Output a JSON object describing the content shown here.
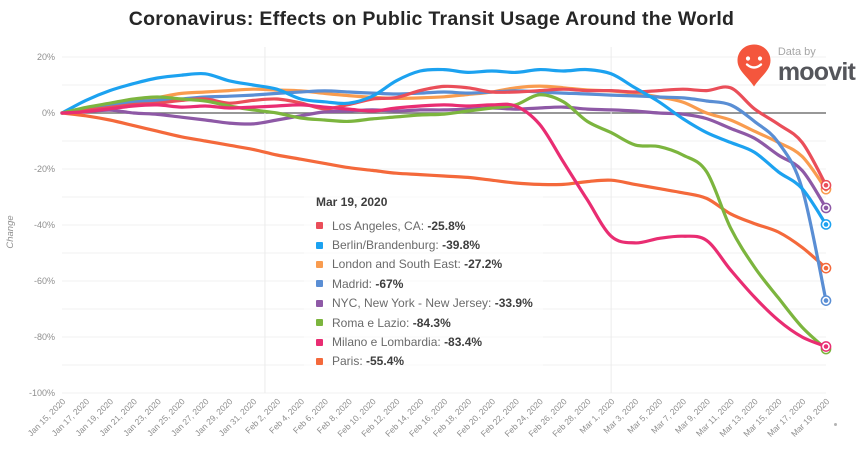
{
  "header": {
    "title": "Coronavirus: Effects on Public Transit Usage Around the World"
  },
  "branding": {
    "data_by": "Data by",
    "brand": "moovit",
    "pin_color": "#f4563d"
  },
  "tooltip": {
    "date": "Mar 19, 2020"
  },
  "chart_data": {
    "type": "line",
    "title": "Coronavirus: Effects on Public Transit Usage Around the World",
    "ylabel": "Change",
    "ylim": [
      -100,
      20
    ],
    "grid_step": 10,
    "grid_on": true,
    "legend_position": "center-overlay-tooltip",
    "y_tick_labels": [
      "20%",
      "0%",
      "-20%",
      "-40%",
      "-60%",
      "-80%",
      "-100%"
    ],
    "y_tick_values": [
      20,
      0,
      -20,
      -40,
      -60,
      -80,
      -100
    ],
    "month_boundaries": [
      "Feb 1, 2020",
      "Mar 1, 2020"
    ],
    "month_boundary_ticks": [
      8.5,
      23
    ],
    "x": [
      "Jan 15, 2020",
      "Jan 17, 2020",
      "Jan 19, 2020",
      "Jan 21, 2020",
      "Jan 23, 2020",
      "Jan 25, 2020",
      "Jan 27, 2020",
      "Jan 29, 2020",
      "Jan 31, 2020",
      "Feb 2, 2020",
      "Feb 4, 2020",
      "Feb 6, 2020",
      "Feb 8, 2020",
      "Feb 10, 2020",
      "Feb 12, 2020",
      "Feb 14, 2020",
      "Feb 16, 2020",
      "Feb 18, 2020",
      "Feb 20, 2020",
      "Feb 22, 2020",
      "Feb 24, 2020",
      "Feb 26, 2020",
      "Feb 28, 2020",
      "Mar 1, 2020",
      "Mar 3, 2020",
      "Mar 5, 2020",
      "Mar 7, 2020",
      "Mar 9, 2020",
      "Mar 11, 2020",
      "Mar 13, 2020",
      "Mar 15, 2020",
      "Mar 17, 2020",
      "Mar 19, 2020"
    ],
    "series": [
      {
        "name": "Los Angeles, CA",
        "color": "#ea4e59",
        "final_label": "-25.8%",
        "values": [
          0,
          1,
          2,
          3,
          3.5,
          4.5,
          5,
          3.5,
          4.5,
          5,
          3.6,
          1.5,
          3,
          5,
          5.5,
          8,
          9.5,
          9,
          7.5,
          7.5,
          8,
          8.5,
          8,
          8,
          7.5,
          8,
          8.5,
          8,
          9,
          1.5,
          -4,
          -10.5,
          -25.8
        ]
      },
      {
        "name": "Berlin/Brandenburg",
        "color": "#1ca2f0",
        "final_label": "-39.8%",
        "values": [
          0,
          4.5,
          8,
          10.5,
          12.5,
          13.5,
          14,
          11.5,
          10,
          8.5,
          5,
          4,
          3.5,
          6,
          11.5,
          15,
          15.5,
          14.5,
          15,
          14.5,
          15.5,
          15,
          15.5,
          14,
          9,
          4,
          -2,
          -7,
          -10.5,
          -14,
          -21,
          -27,
          -39.8
        ]
      },
      {
        "name": "London and South East",
        "color": "#f99c4f",
        "final_label": "-27.2%",
        "values": [
          0,
          1.5,
          2.5,
          4,
          5.5,
          7,
          7.5,
          8,
          8.5,
          8.2,
          7.9,
          7,
          6.2,
          5.6,
          5.2,
          5.4,
          5.8,
          6.6,
          7.5,
          9,
          9.6,
          9,
          8.2,
          7.9,
          7.1,
          5.7,
          3.9,
          0,
          -2.5,
          -6.5,
          -10.5,
          -15.5,
          -27.2
        ]
      },
      {
        "name": "Madrid",
        "color": "#5a8ed4",
        "final_label": "-67%",
        "values": [
          0,
          1.5,
          3,
          4,
          4.5,
          5,
          5.7,
          6,
          6.4,
          7,
          7.5,
          7.9,
          7.5,
          7.1,
          6.8,
          7.1,
          7.5,
          7.1,
          7.5,
          7.9,
          7.5,
          7.1,
          6.8,
          6.4,
          6.1,
          5.7,
          5.4,
          4.3,
          2.9,
          -3,
          -10.5,
          -27,
          -67
        ]
      },
      {
        "name": "NYC, New York - New Jersey",
        "color": "#8e59a6",
        "final_label": "-33.9%",
        "values": [
          0,
          0.5,
          1,
          0,
          -0.5,
          -1.5,
          -2.5,
          -3.6,
          -3.9,
          -2.5,
          -1,
          0.4,
          0.7,
          1.1,
          0.7,
          1.1,
          1.1,
          1.4,
          1.8,
          1.4,
          1.8,
          2.1,
          1.4,
          1.1,
          0.7,
          0,
          -0.4,
          -2,
          -5.5,
          -9,
          -15,
          -20.5,
          -33.9
        ]
      },
      {
        "name": "Roma e Lazio",
        "color": "#7cb53e",
        "final_label": "-84.3%",
        "values": [
          0,
          2,
          3.5,
          5,
          5.7,
          5,
          4.3,
          2.5,
          1.1,
          0,
          -1.8,
          -2.5,
          -3,
          -2.1,
          -1.4,
          -0.7,
          -0.4,
          0.7,
          1.8,
          2.9,
          6.5,
          4,
          -3,
          -7,
          -11.4,
          -12,
          -15,
          -21,
          -41,
          -55,
          -66,
          -76.5,
          -84.3
        ]
      },
      {
        "name": "Milano e Lombardia",
        "color": "#e92d72",
        "final_label": "-83.4%",
        "values": [
          0,
          0.5,
          1.5,
          2.5,
          2.9,
          2.1,
          2.5,
          1.8,
          2.1,
          2.5,
          2.9,
          2.1,
          1.4,
          0.7,
          1.8,
          2.5,
          2.9,
          2.5,
          2.9,
          2.5,
          -4,
          -17.5,
          -31,
          -44,
          -46.4,
          -44.8,
          -44,
          -45.5,
          -56,
          -65.7,
          -74,
          -80,
          -83.4
        ]
      },
      {
        "name": "Paris",
        "color": "#f4693b",
        "final_label": "-55.4%",
        "values": [
          0,
          -1,
          -2.5,
          -4.5,
          -6.5,
          -8.5,
          -10,
          -11.5,
          -13,
          -15,
          -16.5,
          -18,
          -19.5,
          -20.5,
          -21.5,
          -22,
          -22.5,
          -23,
          -24,
          -25,
          -25.5,
          -25.5,
          -24.5,
          -24,
          -25.5,
          -27,
          -28.5,
          -30.5,
          -36,
          -39.5,
          -42.5,
          -48,
          -55.4
        ]
      }
    ],
    "draw_order": [
      2,
      7,
      4,
      3,
      0,
      1,
      5,
      6
    ]
  }
}
